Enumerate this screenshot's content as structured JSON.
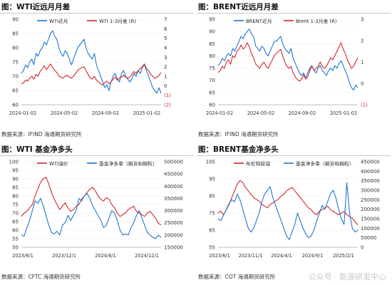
{
  "watermark": "公众号 · 能源研发中心",
  "panels": [
    {
      "title": "图：WTI近远月月差",
      "source": "数据来源：IFIND 海通期货研究所",
      "chart_data": {
        "type": "line",
        "x_labels": [
          "2024-01-02",
          "2024-05-02",
          "2024-09-02",
          "2025-01-02"
        ],
        "y_left": {
          "ticks": [
            "90",
            "85",
            "80",
            "75",
            "70",
            "65",
            "60"
          ],
          "range": [
            60,
            90
          ]
        },
        "y_right": {
          "ticks": [
            "7",
            "6",
            "5",
            "4",
            "3",
            "2",
            "1",
            "0",
            "(1)",
            "(2)"
          ],
          "range": [
            -2,
            7
          ],
          "neg_color": "#d62728"
        },
        "series": [
          {
            "name": "WTI近月",
            "axis": "left",
            "color": "#1f77d4",
            "values": [
              71,
              72,
              74,
              73,
              75,
              76,
              74,
              78,
              77,
              79,
              80,
              82,
              81,
              83,
              85,
              86,
              84,
              83,
              80,
              78,
              77,
              79,
              78,
              76,
              74,
              76,
              78,
              80,
              81,
              82,
              83,
              80,
              78,
              77,
              76,
              78,
              74,
              72,
              70,
              68,
              66,
              67,
              65,
              68,
              70,
              71,
              69,
              68,
              71,
              72,
              70,
              69,
              68,
              69,
              71,
              70,
              72,
              71,
              73,
              74,
              72,
              70,
              68,
              66,
              65,
              64,
              66,
              64
            ]
          },
          {
            "name": "WTI 1-3月差 (R)",
            "axis": "right",
            "color": "#d62728",
            "values": [
              0.2,
              0.3,
              0.6,
              0.5,
              0.8,
              1.0,
              0.7,
              1.2,
              1.0,
              1.5,
              1.8,
              2.1,
              1.7,
              2.0,
              2.3,
              1.9,
              1.6,
              1.4,
              1.0,
              0.9,
              0.8,
              1.0,
              1.1,
              0.9,
              0.8,
              1.0,
              1.3,
              1.6,
              1.8,
              1.9,
              2.0,
              1.6,
              1.2,
              0.8,
              0.7,
              1.0,
              0.6,
              0.4,
              0.2,
              0.1,
              0.3,
              0.5,
              0.2,
              0.4,
              0.7,
              0.9,
              0.6,
              0.8,
              0.9,
              1.1,
              0.9,
              0.8,
              0.9,
              1.2,
              1.5,
              1.3,
              1.6,
              1.8,
              2.0,
              2.3,
              1.8,
              1.6,
              1.2,
              1.0,
              0.8,
              0.9,
              1.1,
              1.4
            ]
          }
        ]
      }
    },
    {
      "title": "图：BRENT近远月月差",
      "source": "数据来源：IFIND 海通期货研究所",
      "chart_data": {
        "type": "line",
        "x_labels": [
          "2024-01-02",
          "2024-05-02",
          "2024-09-02",
          "2025-01-02"
        ],
        "y_left": {
          "ticks": [
            "95",
            "90",
            "85",
            "80",
            "75",
            "70",
            "65",
            "60"
          ],
          "range": [
            60,
            95
          ]
        },
        "y_right": {
          "ticks": [
            "3",
            "2",
            "1",
            "0",
            "(1)"
          ],
          "range": [
            -1,
            3
          ],
          "neg_color": "#d62728"
        },
        "series": [
          {
            "name": "BRENT近月",
            "axis": "left",
            "color": "#1f77d4",
            "values": [
              76,
              77,
              79,
              78,
              80,
              81,
              80,
              83,
              82,
              84,
              86,
              88,
              87,
              89,
              90,
              91,
              89,
              88,
              84,
              83,
              82,
              84,
              83,
              81,
              80,
              82,
              84,
              86,
              86,
              87,
              88,
              85,
              83,
              82,
              81,
              83,
              79,
              77,
              75,
              73,
              72,
              73,
              71,
              73,
              75,
              76,
              74,
              73,
              75,
              76,
              74,
              73,
              72,
              74,
              75,
              74,
              76,
              75,
              77,
              78,
              76,
              74,
              72,
              69,
              67,
              66,
              68,
              67
            ]
          },
          {
            "name": "Brent 1-3月差 (R)",
            "axis": "right",
            "color": "#d62728",
            "values": [
              0.5,
              0.6,
              0.8,
              0.7,
              1.0,
              1.1,
              0.9,
              1.3,
              1.2,
              1.5,
              1.6,
              1.8,
              1.6,
              1.7,
              1.9,
              1.7,
              1.4,
              1.2,
              0.9,
              0.8,
              0.7,
              0.9,
              1.0,
              0.8,
              0.7,
              0.9,
              1.1,
              1.3,
              1.4,
              1.5,
              1.6,
              1.3,
              1.0,
              0.8,
              0.7,
              0.8,
              0.5,
              0.3,
              0.2,
              0.1,
              0.2,
              0.4,
              0.2,
              0.3,
              0.6,
              0.8,
              0.6,
              0.7,
              0.8,
              1.0,
              0.8,
              0.7,
              0.8,
              1.0,
              1.2,
              1.1,
              1.3,
              1.5,
              1.7,
              1.9,
              1.6,
              1.4,
              1.1,
              0.9,
              0.7,
              0.8,
              1.0,
              1.2
            ]
          }
        ]
      }
    },
    {
      "title": "图：WTI 基金净多头",
      "source": "数据来源：CFTC 海通期货研究所",
      "chart_data": {
        "type": "line",
        "x_labels": [
          "2023/6/1",
          "2023/12/1",
          "2024/6/1",
          "2024/12/1"
        ],
        "y_left": {
          "ticks": [
            "100",
            "95",
            "90",
            "85",
            "80",
            "75",
            "70",
            "65",
            "60",
            "55",
            "50"
          ],
          "range": [
            50,
            100
          ]
        },
        "y_right": {
          "ticks": [
            "500000",
            "450000",
            "400000",
            "350000",
            "300000",
            "250000",
            "200000",
            "150000"
          ],
          "range": [
            150000,
            500000
          ]
        },
        "series": [
          {
            "name": "WTI油价",
            "axis": "left",
            "color": "#d62728",
            "values": [
              68,
              70,
              71,
              73,
              75,
              80,
              84,
              88,
              90,
              91,
              87,
              82,
              78,
              75,
              72,
              74,
              76,
              73,
              71,
              72,
              74,
              75,
              78,
              80,
              82,
              84,
              85,
              83,
              80,
              78,
              77,
              79,
              78,
              75,
              73,
              70,
              68,
              69,
              70,
              72,
              73,
              74,
              71,
              70,
              69,
              68,
              70,
              71,
              69,
              67,
              64,
              63
            ]
          },
          {
            "name": "基金净多单（期货和期权）",
            "axis": "right",
            "color": "#1f77d4",
            "values": [
              200000,
              195000,
              230000,
              260000,
              300000,
              340000,
              330000,
              350000,
              320000,
              280000,
              240000,
              210000,
              205000,
              215000,
              200000,
              240000,
              250000,
              280000,
              260000,
              280000,
              300000,
              350000,
              340000,
              360000,
              370000,
              350000,
              320000,
              300000,
              280000,
              260000,
              230000,
              240000,
              270000,
              300000,
              290000,
              260000,
              220000,
              200000,
              205000,
              200000,
              230000,
              250000,
              280000,
              300000,
              270000,
              240000,
              210000,
              200000,
              190000,
              185000,
              200000,
              190000
            ]
          }
        ]
      }
    },
    {
      "title": "图：BRENT基金净多头",
      "source": "数据来源：COT 海通期货研究所",
      "chart_data": {
        "type": "line",
        "x_labels": [
          "2023/6/1",
          "2023/11/1",
          "2024/4/1",
          "2024/9/1",
          "2025/2/1"
        ],
        "y_left": {
          "ticks": [
            "105",
            "95",
            "85",
            "75",
            "65",
            "55"
          ],
          "range": [
            55,
            105
          ]
        },
        "y_right": {
          "ticks": [
            "450000",
            "400000",
            "350000",
            "300000",
            "250000",
            "200000",
            "150000",
            "100000",
            "50000",
            "0"
          ],
          "range": [
            0,
            450000
          ]
        },
        "series": [
          {
            "name": "布伦特原油",
            "axis": "left",
            "color": "#d62728",
            "values": [
              75,
              76,
              74,
              77,
              80,
              84,
              88,
              92,
              94,
              93,
              90,
              88,
              86,
              84,
              83,
              82,
              80,
              79,
              78,
              80,
              81,
              82,
              83,
              85,
              86,
              88,
              89,
              90,
              88,
              86,
              84,
              82,
              80,
              78,
              77,
              75,
              74,
              76,
              77,
              78,
              79,
              77,
              76,
              75,
              74,
              75,
              76,
              74,
              73,
              72,
              70,
              68
            ]
          },
          {
            "name": "基金净多单（期货和期权）",
            "axis": "right",
            "color": "#1f77d4",
            "values": [
              150000,
              140000,
              170000,
              200000,
              230000,
              250000,
              240000,
              280000,
              250000,
              200000,
              150000,
              100000,
              80000,
              100000,
              140000,
              180000,
              240000,
              280000,
              300000,
              320000,
              260000,
              220000,
              180000,
              140000,
              100000,
              60000,
              40000,
              80000,
              120000,
              180000,
              140000,
              100000,
              70000,
              50000,
              60000,
              90000,
              140000,
              180000,
              220000,
              200000,
              240000,
              280000,
              300000,
              260000,
              200000,
              150000,
              120000,
              340000,
              180000,
              100000,
              80000,
              90000
            ]
          }
        ]
      }
    }
  ]
}
